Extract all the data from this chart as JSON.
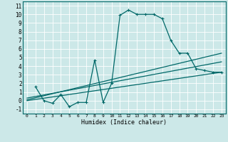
{
  "xlabel": "Humidex (Indice chaleur)",
  "bg_color": "#cce8e8",
  "grid_color": "#ffffff",
  "line_color": "#006868",
  "xlim": [
    -0.5,
    23.5
  ],
  "ylim": [
    -1.5,
    11.5
  ],
  "xticks": [
    0,
    1,
    2,
    3,
    4,
    5,
    6,
    7,
    8,
    9,
    10,
    11,
    12,
    13,
    14,
    15,
    16,
    17,
    18,
    19,
    20,
    21,
    22,
    23
  ],
  "yticks": [
    -1,
    0,
    1,
    2,
    3,
    4,
    5,
    6,
    7,
    8,
    9,
    10,
    11
  ],
  "line1_x": [
    1,
    2,
    3,
    4,
    5,
    6,
    7,
    8,
    9,
    10,
    11,
    12,
    13,
    14,
    15,
    16,
    17,
    18,
    19,
    20,
    21,
    22,
    23
  ],
  "line1_y": [
    1.6,
    0.0,
    -0.3,
    0.7,
    -0.7,
    -0.2,
    -0.2,
    4.7,
    -0.2,
    2.0,
    9.9,
    10.5,
    10.0,
    10.0,
    10.0,
    9.5,
    7.0,
    5.5,
    5.5,
    3.7,
    3.5,
    3.3,
    3.3
  ],
  "line2_x": [
    0,
    23
  ],
  "line2_y": [
    0.0,
    3.3
  ],
  "line3_x": [
    0,
    23
  ],
  "line3_y": [
    0.3,
    4.5
  ],
  "line4_x": [
    0,
    23
  ],
  "line4_y": [
    0.1,
    5.5
  ]
}
